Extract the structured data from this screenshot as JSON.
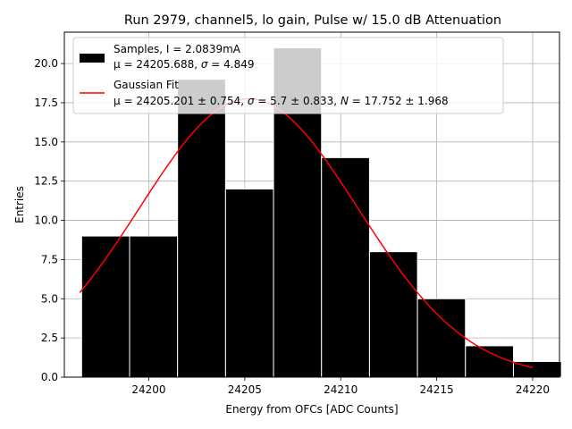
{
  "chart_data": {
    "type": "bar",
    "title": "Run 2979, channel5, lo gain, Pulse w/ 15.0 dB Attenuation",
    "xlabel": "Energy from OFCs [ADC Counts]",
    "ylabel": "Entries",
    "xlim": [
      24195.6,
      24221.4
    ],
    "ylim": [
      0,
      22.0
    ],
    "xticks": [
      24200,
      24205,
      24210,
      24215,
      24220
    ],
    "xtick_labels": [
      "24200",
      "24205",
      "24210",
      "24215",
      "24220"
    ],
    "yticks": [
      0.0,
      2.5,
      5.0,
      7.5,
      10.0,
      12.5,
      15.0,
      17.5,
      20.0
    ],
    "ytick_labels": [
      "0.0",
      "2.5",
      "5.0",
      "7.5",
      "10.0",
      "12.5",
      "15.0",
      "17.5",
      "20.0"
    ],
    "grid": true,
    "legend_position": "top-left",
    "histogram": {
      "bin_edges": [
        24196.5,
        24199.0,
        24201.5,
        24204.0,
        24206.5,
        24209.0,
        24211.5,
        24214.0,
        24216.5,
        24219.0,
        24221.5
      ],
      "counts": [
        9,
        9,
        19,
        12,
        21,
        14,
        8,
        5,
        2,
        1
      ],
      "color": "#000000",
      "edge_color": "#ffffff"
    },
    "fit_curve": {
      "mu": 24205.201,
      "sigma": 5.7,
      "N": 17.752,
      "x_start": 24196.4,
      "x_end": 24220.0,
      "color": "#ff0000"
    },
    "legend": [
      {
        "kind": "patch",
        "color": "#000000",
        "line1": "Samples, I = 2.0839mA",
        "line2_prefix": "μ = 24205.688, ",
        "line2_sym": "σ",
        "line2_suffix": " = 4.849"
      },
      {
        "kind": "line",
        "color": "#ff0000",
        "line1": "Gaussian Fit",
        "line2_prefix": "μ = 24205.201 ± 0.754, ",
        "line2_sym": "σ",
        "line2_mid": " = 5.7 ± 0.833, ",
        "line2_sym2": "N",
        "line2_suffix": " = 17.752 ± 1.968"
      }
    ]
  }
}
